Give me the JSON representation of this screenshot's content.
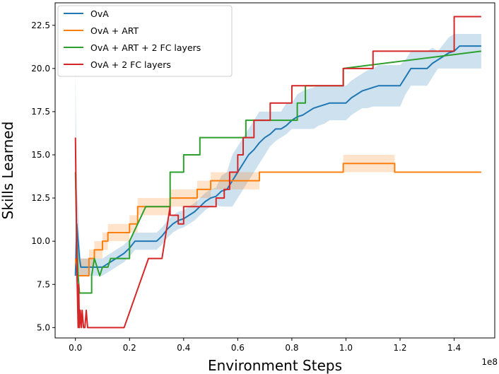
{
  "chart_data": {
    "type": "line",
    "title": "",
    "xlabel": "Environment Steps",
    "ylabel": "Skills Learned",
    "x_offset_label": "1e8",
    "xlim": [
      -0.075,
      1.55
    ],
    "ylim": [
      4.4,
      23.8
    ],
    "xticks": [
      0.0,
      0.2,
      0.4,
      0.6,
      0.8,
      1.0,
      1.2,
      1.4
    ],
    "xtick_labels": [
      "0.0",
      "0.2",
      "0.4",
      "0.6",
      "0.8",
      "1.0",
      "1.2",
      "1.4"
    ],
    "yticks": [
      5.0,
      7.5,
      10.0,
      12.5,
      15.0,
      17.5,
      20.0,
      22.5
    ],
    "ytick_labels": [
      "5.0",
      "7.5",
      "10.0",
      "12.5",
      "15.0",
      "17.5",
      "20.0",
      "22.5"
    ],
    "grid": false,
    "legend_position": "top-left",
    "series": [
      {
        "name": "OvA",
        "color": "#1f77b4",
        "x": [
          0.0,
          0.005,
          0.01,
          0.015,
          0.02,
          0.03,
          0.05,
          0.08,
          0.1,
          0.12,
          0.15,
          0.18,
          0.2,
          0.22,
          0.25,
          0.28,
          0.3,
          0.32,
          0.34,
          0.36,
          0.38,
          0.4,
          0.42,
          0.44,
          0.46,
          0.48,
          0.5,
          0.52,
          0.54,
          0.56,
          0.58,
          0.6,
          0.62,
          0.64,
          0.66,
          0.68,
          0.7,
          0.72,
          0.74,
          0.76,
          0.78,
          0.8,
          0.82,
          0.84,
          0.86,
          0.88,
          0.9,
          0.92,
          0.94,
          0.96,
          0.98,
          1.0,
          1.02,
          1.04,
          1.06,
          1.08,
          1.1,
          1.12,
          1.14,
          1.16,
          1.18,
          1.2,
          1.22,
          1.24,
          1.26,
          1.28,
          1.3,
          1.32,
          1.34,
          1.36,
          1.38,
          1.4,
          1.42,
          1.5
        ],
        "y": [
          8.0,
          11.0,
          10.0,
          9.0,
          8.5,
          8.5,
          8.5,
          8.5,
          8.5,
          8.7,
          9.0,
          9.3,
          9.6,
          10.0,
          10.0,
          10.0,
          10.0,
          10.3,
          10.7,
          11.0,
          11.2,
          11.3,
          11.5,
          11.7,
          12.0,
          12.3,
          12.5,
          12.6,
          12.9,
          13.0,
          13.5,
          14.0,
          14.5,
          15.0,
          15.3,
          15.7,
          16.0,
          16.2,
          16.5,
          16.5,
          16.7,
          17.0,
          17.2,
          17.3,
          17.5,
          17.7,
          17.8,
          17.9,
          18.0,
          18.0,
          18.0,
          18.0,
          18.3,
          18.5,
          18.7,
          18.8,
          18.9,
          19.0,
          19.0,
          19.0,
          19.0,
          19.0,
          19.5,
          20.0,
          20.0,
          20.0,
          20.0,
          20.3,
          20.5,
          20.7,
          20.9,
          21.0,
          21.3,
          21.3
        ],
        "band_low": [
          7.0,
          8.0,
          8.0,
          8.0,
          8.0,
          8.0,
          8.0,
          8.0,
          8.0,
          8.2,
          8.5,
          8.8,
          9.1,
          9.5,
          9.5,
          9.5,
          9.5,
          9.8,
          10.2,
          10.5,
          10.7,
          10.8,
          11.0,
          11.2,
          11.5,
          11.8,
          12.0,
          12.1,
          12.0,
          12.0,
          12.0,
          12.5,
          13.0,
          13.5,
          14.0,
          14.5,
          15.0,
          15.5,
          15.8,
          16.0,
          16.2,
          16.5,
          16.5,
          16.5,
          16.5,
          16.5,
          16.7,
          16.8,
          17.0,
          17.0,
          17.0,
          17.0,
          17.3,
          17.5,
          17.7,
          17.7,
          17.8,
          17.8,
          17.8,
          17.8,
          17.8,
          17.8,
          18.5,
          19.0,
          19.0,
          19.0,
          19.0,
          19.5,
          20.0,
          20.0,
          20.0,
          20.0,
          20.0,
          20.0
        ],
        "band_high": [
          20.0,
          13.0,
          12.0,
          10.0,
          9.0,
          9.0,
          9.0,
          9.0,
          9.0,
          9.2,
          9.5,
          9.8,
          10.1,
          10.5,
          10.5,
          10.5,
          10.5,
          10.8,
          11.2,
          11.5,
          11.7,
          11.8,
          12.0,
          12.2,
          12.5,
          12.8,
          13.0,
          13.1,
          13.8,
          14.0,
          15.0,
          15.5,
          16.0,
          16.5,
          17.0,
          17.5,
          17.5,
          17.5,
          17.5,
          17.5,
          18.0,
          18.0,
          18.5,
          18.7,
          18.8,
          18.9,
          19.0,
          19.0,
          19.0,
          19.0,
          19.0,
          19.0,
          19.3,
          19.5,
          19.7,
          19.9,
          20.0,
          20.2,
          20.2,
          20.2,
          20.2,
          20.2,
          20.5,
          21.0,
          21.0,
          21.0,
          21.0,
          21.2,
          21.0,
          21.4,
          21.8,
          22.0,
          22.0,
          22.0
        ]
      },
      {
        "name": "OvA + ART",
        "color": "#ff7f0e",
        "x": [
          0.0,
          0.005,
          0.01,
          0.02,
          0.05,
          0.05,
          0.07,
          0.07,
          0.1,
          0.1,
          0.12,
          0.12,
          0.2,
          0.2,
          0.23,
          0.23,
          0.3,
          0.3,
          0.32,
          0.32,
          0.35,
          0.35,
          0.45,
          0.45,
          0.5,
          0.5,
          0.6,
          0.6,
          0.68,
          0.68,
          0.99,
          0.99,
          1.18,
          1.18,
          1.2,
          1.2,
          1.5
        ],
        "y": [
          9.0,
          8.5,
          8.0,
          8.0,
          8.0,
          9.0,
          9.0,
          9.5,
          9.5,
          10.0,
          10.0,
          10.5,
          10.5,
          11.0,
          11.0,
          12.0,
          12.0,
          12.0,
          12.0,
          12.0,
          12.0,
          12.5,
          12.5,
          13.0,
          13.0,
          13.5,
          13.5,
          13.5,
          13.5,
          14.0,
          14.0,
          14.5,
          14.5,
          14.0,
          14.0,
          14.0,
          14.0
        ],
        "band_low": [
          8.0,
          8.0,
          8.0,
          8.0,
          8.0,
          8.5,
          8.5,
          9.0,
          9.0,
          9.5,
          9.5,
          10.0,
          10.0,
          10.5,
          10.5,
          11.5,
          11.5,
          11.5,
          11.5,
          11.5,
          11.5,
          12.0,
          12.0,
          12.5,
          12.5,
          13.0,
          13.0,
          13.0,
          13.0,
          14.0,
          14.0,
          14.0,
          14.0,
          14.0,
          14.0,
          14.0,
          14.0
        ],
        "band_high": [
          10.0,
          9.0,
          9.0,
          9.0,
          9.0,
          9.5,
          9.5,
          10.0,
          10.0,
          10.5,
          10.5,
          11.0,
          11.0,
          11.5,
          11.5,
          12.5,
          12.5,
          12.5,
          12.5,
          12.5,
          12.5,
          13.0,
          13.0,
          13.5,
          13.5,
          14.0,
          14.0,
          14.0,
          14.0,
          14.0,
          14.0,
          15.0,
          15.0,
          14.0,
          14.0,
          14.0,
          14.0
        ]
      },
      {
        "name": "OvA + ART + 2 FC layers",
        "color": "#2ca02c",
        "x": [
          0.0,
          0.005,
          0.01,
          0.015,
          0.02,
          0.02,
          0.06,
          0.06,
          0.07,
          0.09,
          0.1,
          0.12,
          0.13,
          0.15,
          0.2,
          0.2,
          0.26,
          0.26,
          0.35,
          0.35,
          0.38,
          0.38,
          0.4,
          0.4,
          0.46,
          0.46,
          0.55,
          0.55,
          0.63,
          0.63,
          0.65,
          0.65,
          0.82,
          0.82,
          0.85,
          0.85,
          0.99,
          0.99,
          1.5
        ],
        "y": [
          14.0,
          10.0,
          8.0,
          7.0,
          7.0,
          7.0,
          7.0,
          8.0,
          9.0,
          8.0,
          8.5,
          8.5,
          9.0,
          9.0,
          9.0,
          10.0,
          12.0,
          12.0,
          12.0,
          14.0,
          14.0,
          14.0,
          14.0,
          15.0,
          15.0,
          16.0,
          16.0,
          16.0,
          16.0,
          17.0,
          17.0,
          17.0,
          17.0,
          18.0,
          18.0,
          19.0,
          19.0,
          20.0,
          21.0
        ]
      },
      {
        "name": "OvA + 2 FC layers",
        "color": "#d62728",
        "x": [
          0.0,
          0.003,
          0.006,
          0.01,
          0.012,
          0.015,
          0.018,
          0.022,
          0.025,
          0.03,
          0.035,
          0.04,
          0.045,
          0.05,
          0.18,
          0.27,
          0.32,
          0.35,
          0.35,
          0.38,
          0.38,
          0.4,
          0.4,
          0.42,
          0.46,
          0.46,
          0.52,
          0.52,
          0.55,
          0.55,
          0.57,
          0.57,
          0.6,
          0.6,
          0.62,
          0.62,
          0.66,
          0.66,
          0.72,
          0.72,
          0.75,
          0.75,
          0.8,
          0.8,
          0.95,
          0.95,
          0.99,
          0.99,
          1.05,
          1.05,
          1.1,
          1.1,
          1.4,
          1.4,
          1.5
        ],
        "y": [
          16.0,
          12.0,
          8.0,
          5.0,
          7.5,
          5.0,
          6.0,
          5.0,
          6.0,
          5.0,
          5.0,
          6.0,
          5.0,
          5.0,
          5.0,
          9.0,
          9.0,
          12.0,
          11.5,
          11.5,
          11.0,
          11.0,
          12.0,
          12.0,
          12.0,
          12.0,
          12.0,
          12.5,
          12.5,
          13.0,
          13.0,
          14.0,
          14.0,
          15.0,
          15.0,
          16.0,
          16.0,
          17.0,
          17.0,
          18.0,
          18.0,
          18.0,
          18.0,
          19.0,
          19.0,
          19.0,
          19.0,
          20.0,
          20.0,
          20.0,
          20.0,
          21.0,
          21.0,
          23.0,
          23.0
        ]
      }
    ]
  }
}
